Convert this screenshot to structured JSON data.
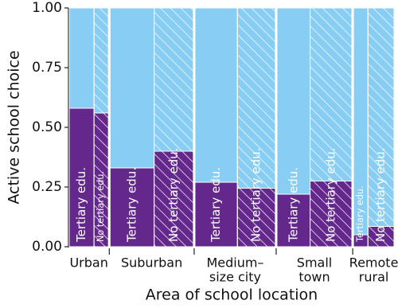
{
  "chart_data": {
    "type": "mosaic",
    "x_label": "Area of school location",
    "y_label": "Active school choice",
    "categories": [
      [
        "Urban"
      ],
      [
        "Suburban"
      ],
      [
        "Medium–",
        "size city"
      ],
      [
        "Small",
        "town"
      ],
      [
        "Remote",
        "rural"
      ]
    ],
    "ylim": [
      0,
      1
    ],
    "yticks": [
      {
        "value": 0,
        "label": "0.00"
      },
      {
        "value": 0.25,
        "label": "0.25"
      },
      {
        "value": 0.5,
        "label": "0.50"
      },
      {
        "value": 0.75,
        "label": "0.75"
      },
      {
        "value": 1,
        "label": "1.00"
      }
    ],
    "remainder_color": "#87cdf4",
    "series": [
      {
        "name": "Tertiary edu.",
        "color": "#64288c",
        "hatch": false,
        "values": [
          0.58,
          0.33,
          0.27,
          0.22,
          0.05
        ],
        "widths": [
          0.077,
          0.137,
          0.132,
          0.103,
          0.045
        ]
      },
      {
        "name": "No tertiary edu.",
        "color": "#64288c",
        "hatch": true,
        "values": [
          0.56,
          0.4,
          0.245,
          0.275,
          0.085
        ],
        "widths": [
          0.045,
          0.122,
          0.118,
          0.13,
          0.081
        ]
      }
    ]
  }
}
